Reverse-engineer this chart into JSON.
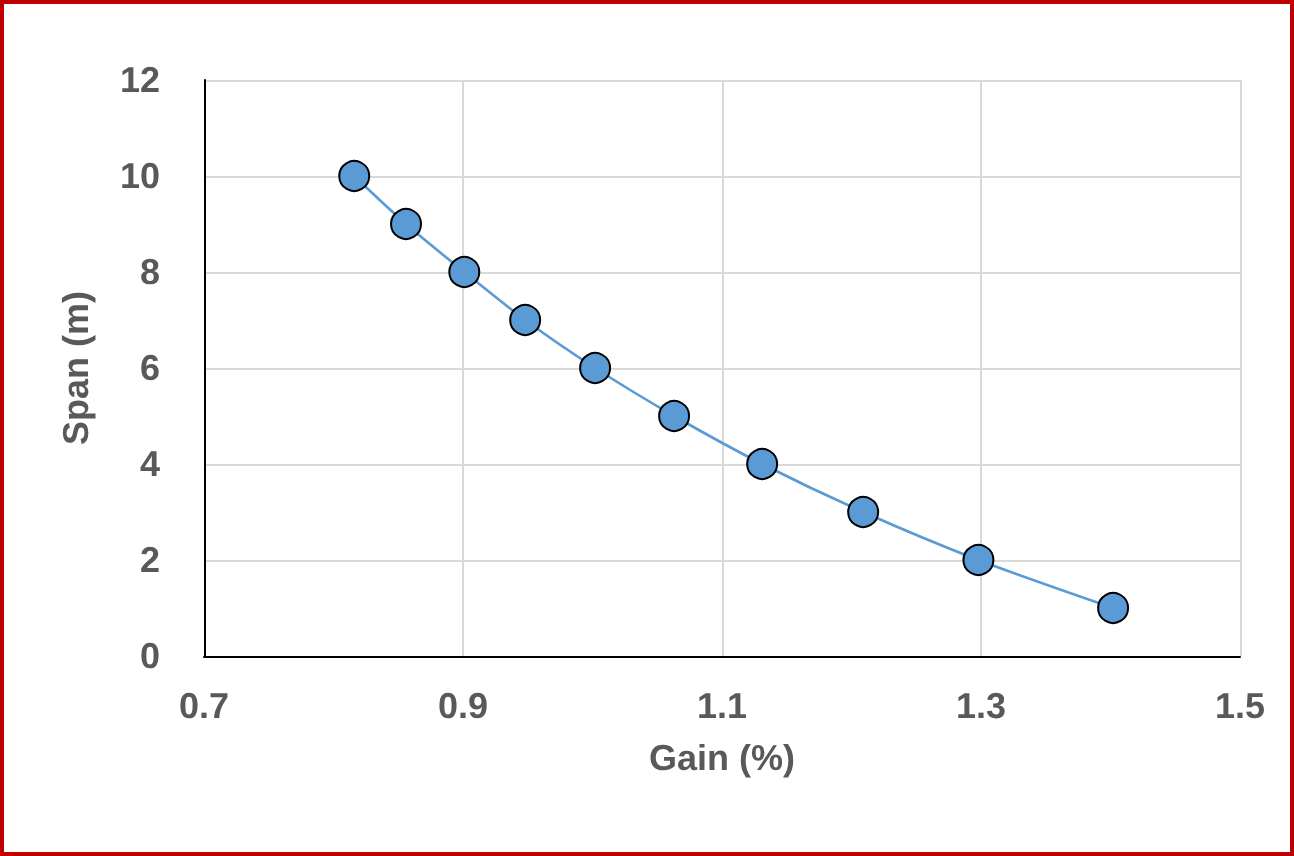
{
  "chart_data": {
    "type": "line",
    "xlabel": "Gain (%)",
    "ylabel": "Span (m)",
    "series": [
      {
        "color": "#5b9bd5",
        "x": [
          0.816,
          0.856,
          0.901,
          0.948,
          1.002,
          1.063,
          1.131,
          1.209,
          1.298,
          1.402
        ],
        "values": [
          10,
          9,
          8,
          7,
          6,
          5,
          4,
          3,
          2,
          1
        ]
      }
    ],
    "xlim": [
      0.7,
      1.5
    ],
    "xticks": [
      0.7,
      0.9,
      1.1,
      1.3,
      1.5
    ],
    "ylim": [
      0,
      12
    ],
    "yticks": [
      0,
      2,
      4,
      6,
      8,
      10,
      12
    ],
    "grid": true,
    "marker": "circle",
    "line_style": "solid"
  }
}
